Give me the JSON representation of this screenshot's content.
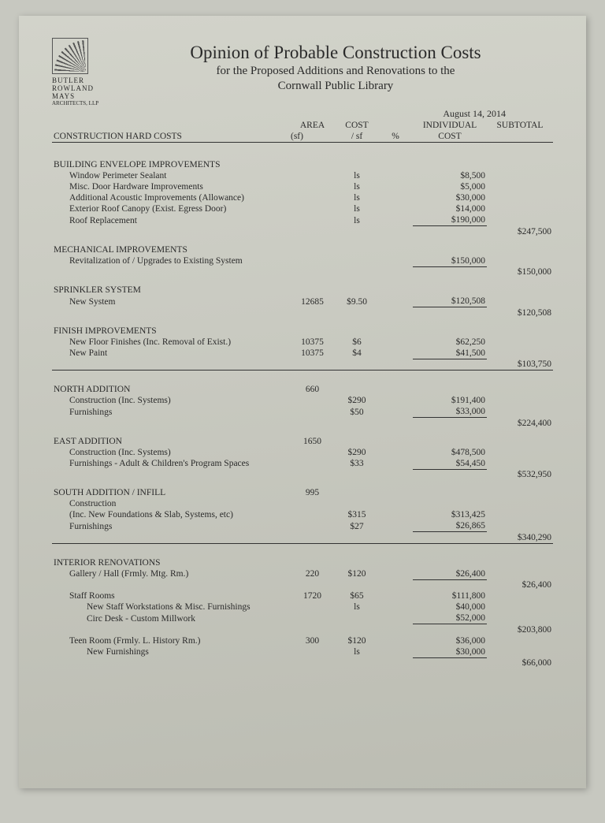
{
  "logo": {
    "lines": [
      "BUTLER",
      "ROWLAND",
      "MAYS"
    ],
    "sub": "ARCHITECTS, LLP"
  },
  "title": {
    "main": "Opinion of Probable Construction Costs",
    "sub1": "for the Proposed Additions and Renovations to the",
    "sub2": "Cornwall Public Library"
  },
  "date": "August 14, 2014",
  "headers": {
    "section": "CONSTRUCTION HARD COSTS",
    "area1": "AREA",
    "area2": "(sf)",
    "cost1": "COST",
    "cost2": "/ sf",
    "pct": "%",
    "ind1": "INDIVIDUAL",
    "ind2": "COST",
    "sub": "SUBTOTAL"
  },
  "sections": {
    "env": {
      "title": "BUILDING ENVELOPE IMPROVEMENTS",
      "items": [
        {
          "label": "Window Perimeter Sealant",
          "area": "",
          "cost": "ls",
          "ind": "$8,500"
        },
        {
          "label": "Misc. Door Hardware Improvements",
          "area": "",
          "cost": "ls",
          "ind": "$5,000"
        },
        {
          "label": "Additional Acoustic Improvements (Allowance)",
          "area": "",
          "cost": "ls",
          "ind": "$30,000"
        },
        {
          "label": "Exterior Roof Canopy (Exist. Egress Door)",
          "area": "",
          "cost": "ls",
          "ind": "$14,000"
        },
        {
          "label": "Roof Replacement",
          "area": "",
          "cost": "ls",
          "ind": "$190,000",
          "last": true
        }
      ],
      "subtotal": "$247,500"
    },
    "mech": {
      "title": "MECHANICAL IMPROVEMENTS",
      "items": [
        {
          "label": "Revitalization of / Upgrades to Existing System",
          "area": "",
          "cost": "",
          "ind": "$150,000",
          "last": true
        }
      ],
      "subtotal": "$150,000"
    },
    "spr": {
      "title": "SPRINKLER SYSTEM",
      "items": [
        {
          "label": "New System",
          "area": "12685",
          "cost": "$9.50",
          "ind": "$120,508",
          "last": true
        }
      ],
      "subtotal": "$120,508"
    },
    "fin": {
      "title": "FINISH IMPROVEMENTS",
      "items": [
        {
          "label": "New Floor Finishes (Inc. Removal of Exist.)",
          "area": "10375",
          "cost": "$6",
          "ind": "$62,250"
        },
        {
          "label": "New Paint",
          "area": "10375",
          "cost": "$4",
          "ind": "$41,500",
          "last": true
        }
      ],
      "subtotal": "$103,750"
    },
    "north": {
      "title": "NORTH ADDITION",
      "area": "660",
      "items": [
        {
          "label": "Construction  (Inc. Systems)",
          "area": "",
          "cost": "$290",
          "ind": "$191,400"
        },
        {
          "label": "Furnishings",
          "area": "",
          "cost": "$50",
          "ind": "$33,000",
          "last": true
        }
      ],
      "subtotal": "$224,400"
    },
    "east": {
      "title": "EAST ADDITION",
      "area": "1650",
      "items": [
        {
          "label": "Construction (Inc. Systems)",
          "area": "",
          "cost": "$290",
          "ind": "$478,500"
        },
        {
          "label": "Furnishings - Adult & Children's Program Spaces",
          "area": "",
          "cost": "$33",
          "ind": "$54,450",
          "last": true
        }
      ],
      "subtotal": "$532,950"
    },
    "south": {
      "title": "SOUTH ADDITION /  INFILL",
      "area": "995",
      "items": [
        {
          "label": "Construction",
          "area": "",
          "cost": "",
          "ind": ""
        },
        {
          "label": "(Inc. New Foundations & Slab, Systems, etc)",
          "area": "",
          "cost": "$315",
          "ind": "$313,425"
        },
        {
          "label": "Furnishings",
          "area": "",
          "cost": "$27",
          "ind": "$26,865",
          "last": true
        }
      ],
      "subtotal": "$340,290"
    },
    "interior": {
      "title": "INTERIOR RENOVATIONS",
      "groups": [
        {
          "label": "Gallery /  Hall  (Frmly. Mtg. Rm.)",
          "area": "220",
          "cost": "$120",
          "ind": "$26,400",
          "last": true,
          "subtotal": "$26,400"
        },
        {
          "label": "Staff Rooms",
          "area": "1720",
          "cost": "$65",
          "ind": "$111,800",
          "sub1": {
            "label": "New Staff Workstations & Misc. Furnishings",
            "cost": "ls",
            "ind": "$40,000"
          },
          "sub2": {
            "label": "Circ Desk - Custom Millwork",
            "cost": "",
            "ind": "$52,000",
            "last": true
          },
          "subtotal": "$203,800"
        },
        {
          "label": "Teen Room  (Frmly. L. History Rm.)",
          "area": "300",
          "cost": "$120",
          "ind": "$36,000",
          "sub1": {
            "label": "New Furnishings",
            "cost": "ls",
            "ind": "$30,000",
            "last": true
          },
          "subtotal": "$66,000"
        }
      ]
    }
  }
}
